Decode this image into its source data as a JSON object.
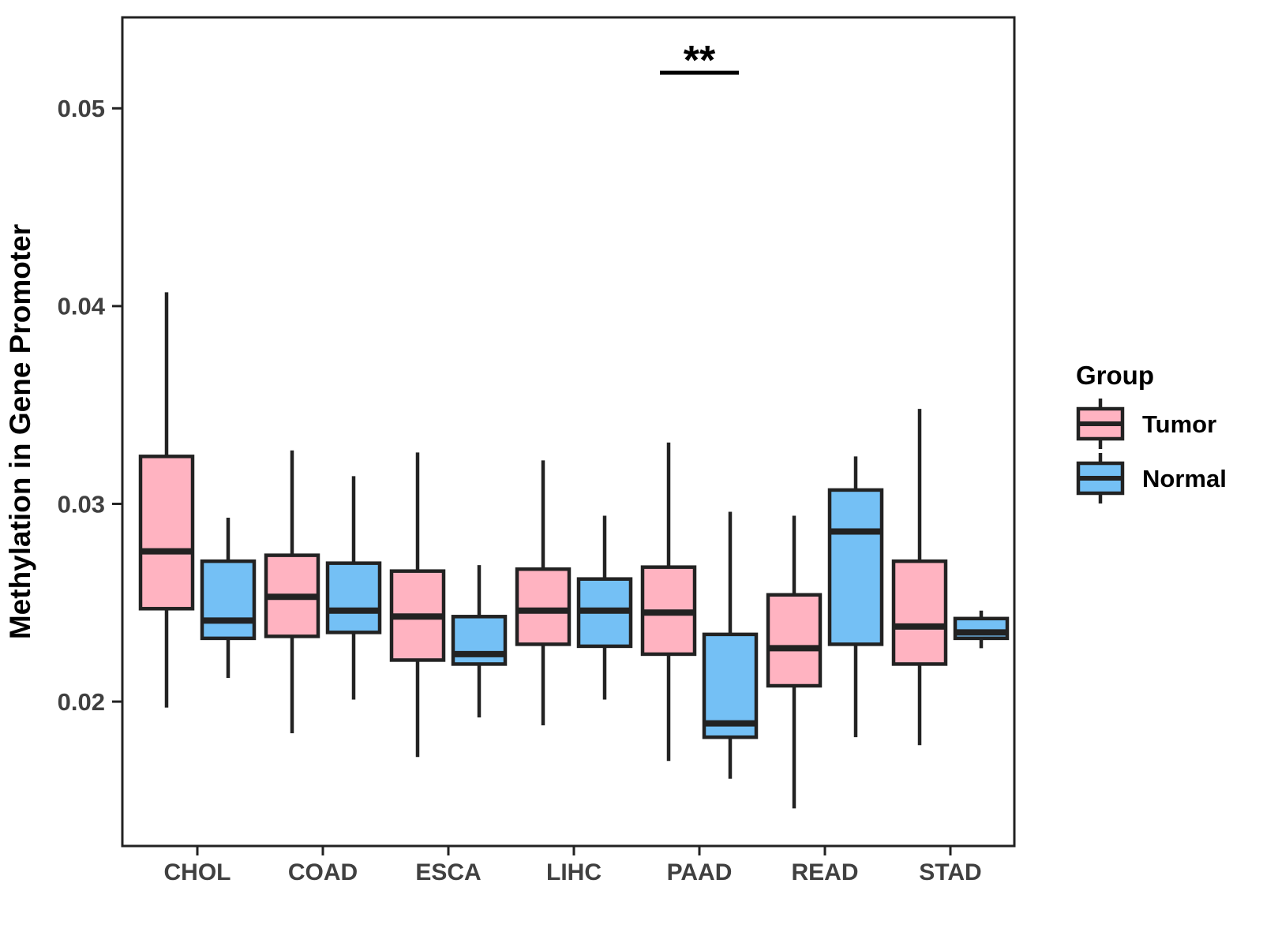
{
  "chart_data": {
    "type": "boxplot",
    "title": "",
    "xlabel": "",
    "ylabel": "Methylation in Gene Promoter",
    "categories": [
      "CHOL",
      "COAD",
      "ESCA",
      "LIHC",
      "PAAD",
      "READ",
      "STAD"
    ],
    "y_ticks": [
      0.02,
      0.03,
      0.04,
      0.05
    ],
    "ylim": [
      0.0127,
      0.0546
    ],
    "grid": "off",
    "legend_position": "right",
    "colors": {
      "tumor_fill": "#FFB3C1",
      "normal_fill": "#74C0F5",
      "outline": "#222222",
      "axis_text": "#404040",
      "title_text": "#000000"
    },
    "legend": {
      "title": "Group",
      "entries": [
        {
          "label": "Tumor",
          "color": "#FFB3C1"
        },
        {
          "label": "Normal",
          "color": "#74C0F5"
        }
      ]
    },
    "series": [
      {
        "name": "Tumor",
        "color": "#FFB3C1",
        "boxes": [
          {
            "category": "CHOL",
            "low": 0.0197,
            "q1": 0.0247,
            "median": 0.0276,
            "q3": 0.0324,
            "high": 0.0407
          },
          {
            "category": "COAD",
            "low": 0.0184,
            "q1": 0.0233,
            "median": 0.0253,
            "q3": 0.0274,
            "high": 0.0327
          },
          {
            "category": "ESCA",
            "low": 0.0172,
            "q1": 0.0221,
            "median": 0.0243,
            "q3": 0.0266,
            "high": 0.0326
          },
          {
            "category": "LIHC",
            "low": 0.0188,
            "q1": 0.0229,
            "median": 0.0246,
            "q3": 0.0267,
            "high": 0.0322
          },
          {
            "category": "PAAD",
            "low": 0.017,
            "q1": 0.0224,
            "median": 0.0245,
            "q3": 0.0268,
            "high": 0.0331
          },
          {
            "category": "READ",
            "low": 0.0146,
            "q1": 0.0208,
            "median": 0.0227,
            "q3": 0.0254,
            "high": 0.0294
          },
          {
            "category": "STAD",
            "low": 0.0178,
            "q1": 0.0219,
            "median": 0.0238,
            "q3": 0.0271,
            "high": 0.0348
          }
        ]
      },
      {
        "name": "Normal",
        "color": "#74C0F5",
        "boxes": [
          {
            "category": "CHOL",
            "low": 0.0212,
            "q1": 0.0232,
            "median": 0.0241,
            "q3": 0.0271,
            "high": 0.0293
          },
          {
            "category": "COAD",
            "low": 0.0201,
            "q1": 0.0235,
            "median": 0.0246,
            "q3": 0.027,
            "high": 0.0314
          },
          {
            "category": "ESCA",
            "low": 0.0192,
            "q1": 0.0219,
            "median": 0.0224,
            "q3": 0.0243,
            "high": 0.0269
          },
          {
            "category": "LIHC",
            "low": 0.0201,
            "q1": 0.0228,
            "median": 0.0246,
            "q3": 0.0262,
            "high": 0.0294
          },
          {
            "category": "PAAD",
            "low": 0.0161,
            "q1": 0.0182,
            "median": 0.0189,
            "q3": 0.0234,
            "high": 0.0296
          },
          {
            "category": "READ",
            "low": 0.0182,
            "q1": 0.0229,
            "median": 0.0286,
            "q3": 0.0307,
            "high": 0.0324
          },
          {
            "category": "STAD",
            "low": 0.0227,
            "q1": 0.0232,
            "median": 0.0235,
            "q3": 0.0242,
            "high": 0.0246
          }
        ]
      }
    ],
    "significance": {
      "category": "PAAD",
      "label": "**",
      "bar_value": 0.0518
    }
  }
}
